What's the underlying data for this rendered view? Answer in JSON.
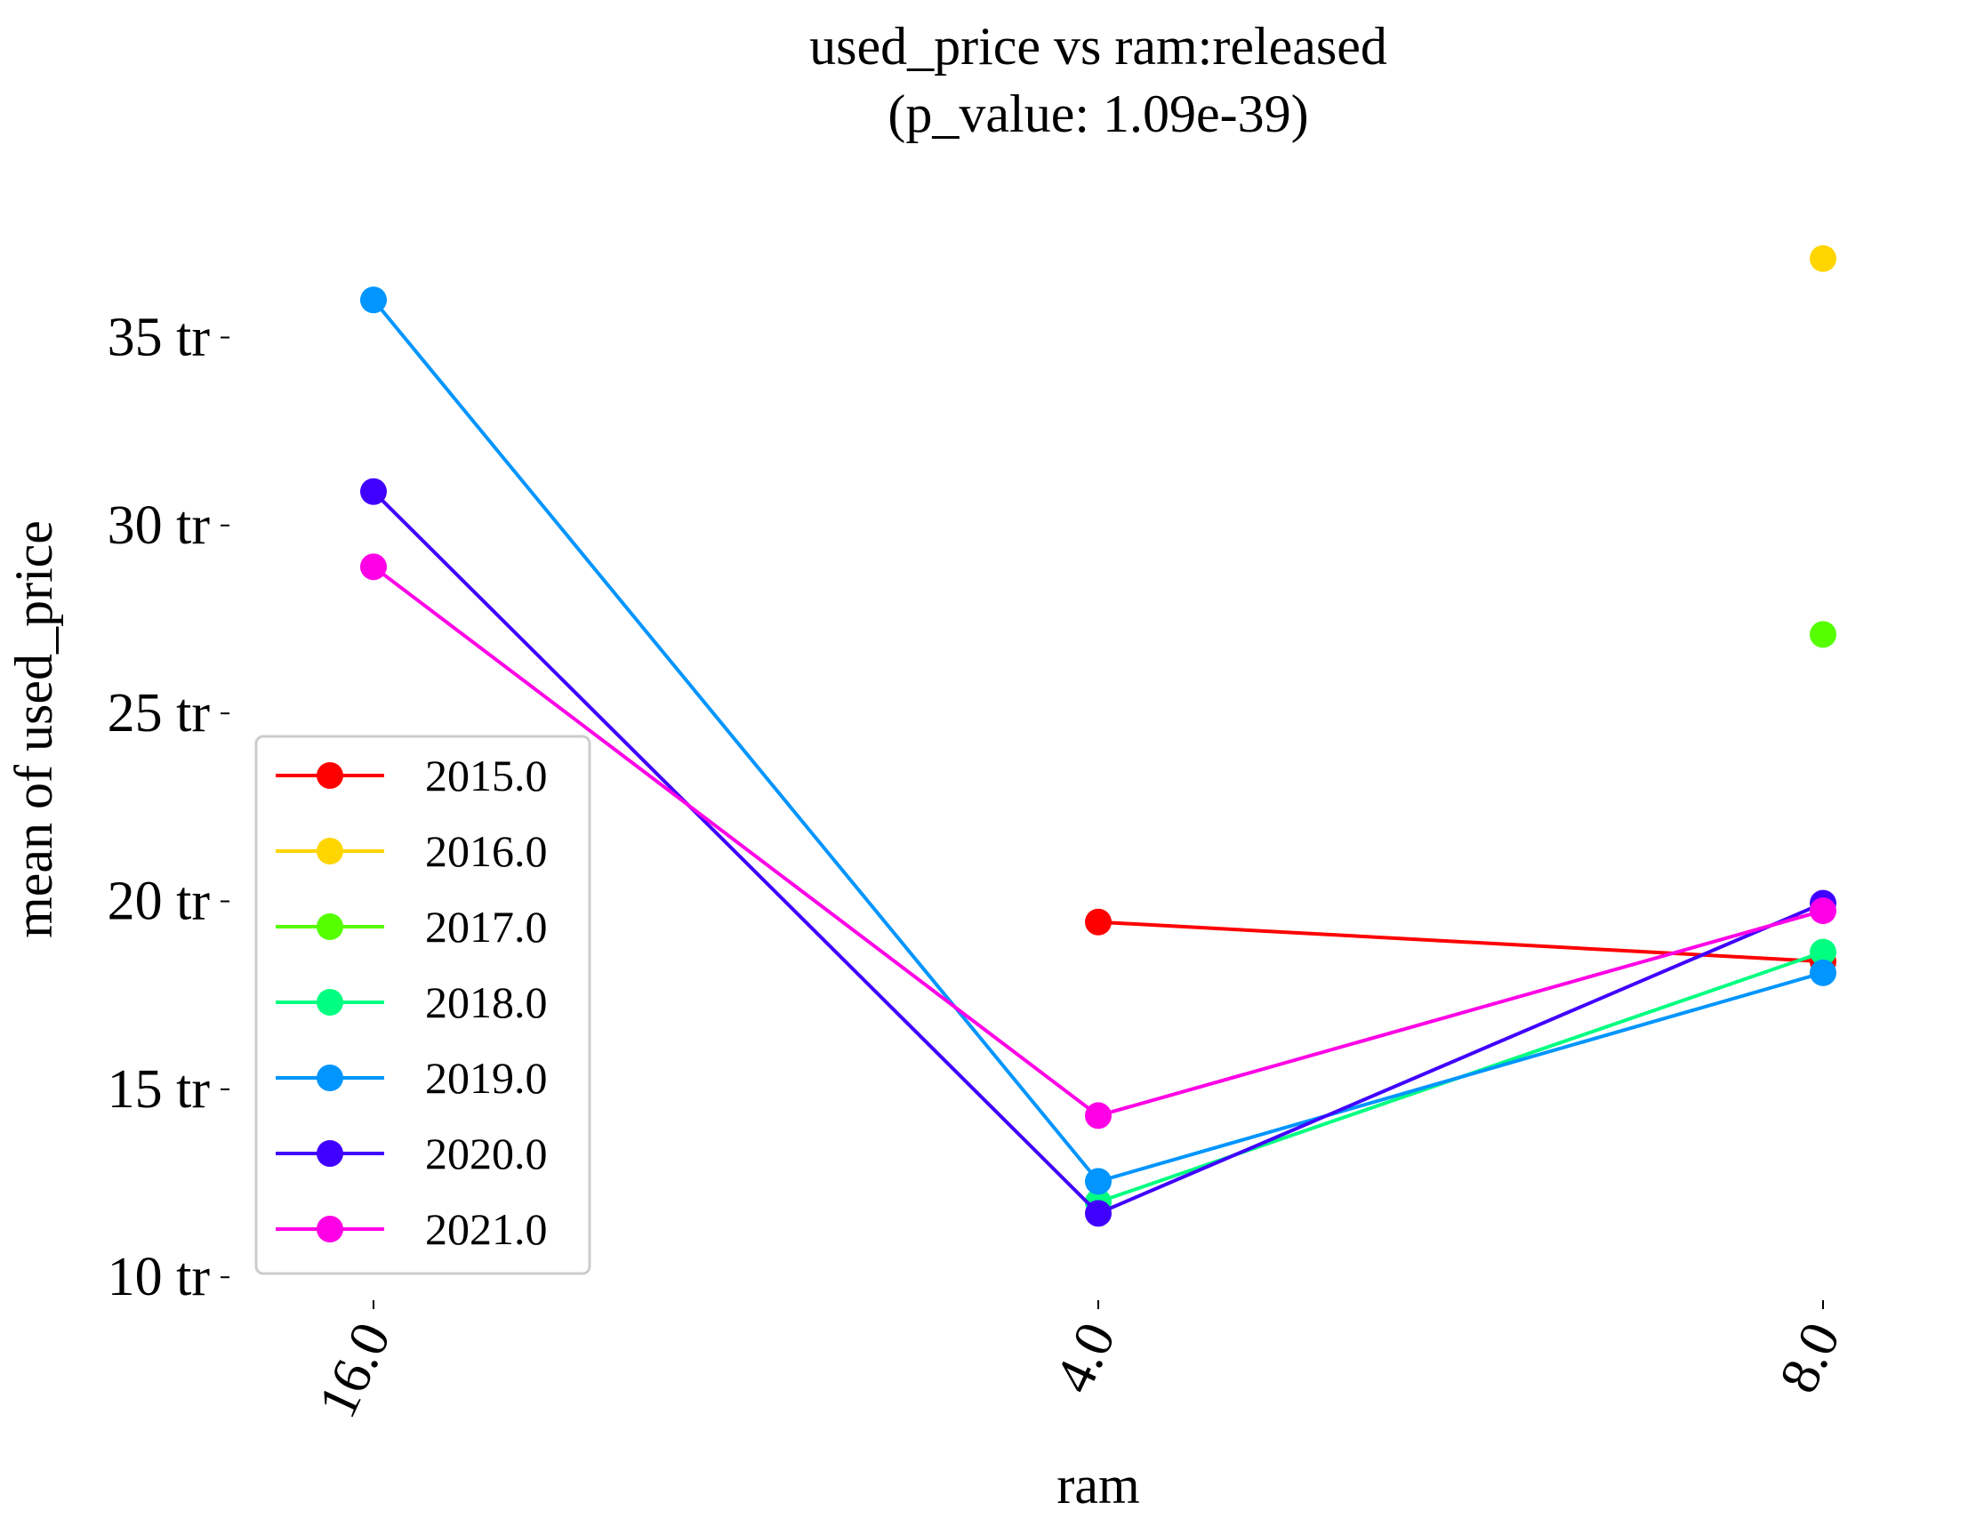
{
  "chart_data": {
    "type": "line",
    "title": "used_price vs ram:released",
    "subtitle": "(p_value: 1.09e-39)",
    "xlabel": "ram",
    "ylabel": "mean of used_price",
    "categories": [
      "16.0",
      "4.0",
      "8.0"
    ],
    "ylim": [
      9.2,
      38.3
    ],
    "yticks": [
      {
        "value": 10,
        "label": "10 tr"
      },
      {
        "value": 15,
        "label": "15 tr"
      },
      {
        "value": 20,
        "label": "20 tr"
      },
      {
        "value": 25,
        "label": "25 tr"
      },
      {
        "value": 30,
        "label": "30 tr"
      },
      {
        "value": 35,
        "label": "35 tr"
      }
    ],
    "grid": false,
    "legend_position": "lower-left",
    "series": [
      {
        "name": "2015.0",
        "color": "#ff0000",
        "values": [
          null,
          19.45,
          18.4
        ]
      },
      {
        "name": "2016.0",
        "color": "#ffd500",
        "values": [
          null,
          null,
          37.1
        ]
      },
      {
        "name": "2017.0",
        "color": "#55ff00",
        "values": [
          null,
          null,
          27.1
        ]
      },
      {
        "name": "2018.0",
        "color": "#00ff80",
        "values": [
          null,
          12.0,
          18.65
        ]
      },
      {
        "name": "2019.0",
        "color": "#0095ff",
        "values": [
          36.0,
          12.55,
          18.1
        ]
      },
      {
        "name": "2020.0",
        "color": "#4000ff",
        "values": [
          30.9,
          11.7,
          19.95
        ]
      },
      {
        "name": "2021.0",
        "color": "#ff00e6",
        "values": [
          28.9,
          14.3,
          19.75
        ]
      }
    ]
  }
}
